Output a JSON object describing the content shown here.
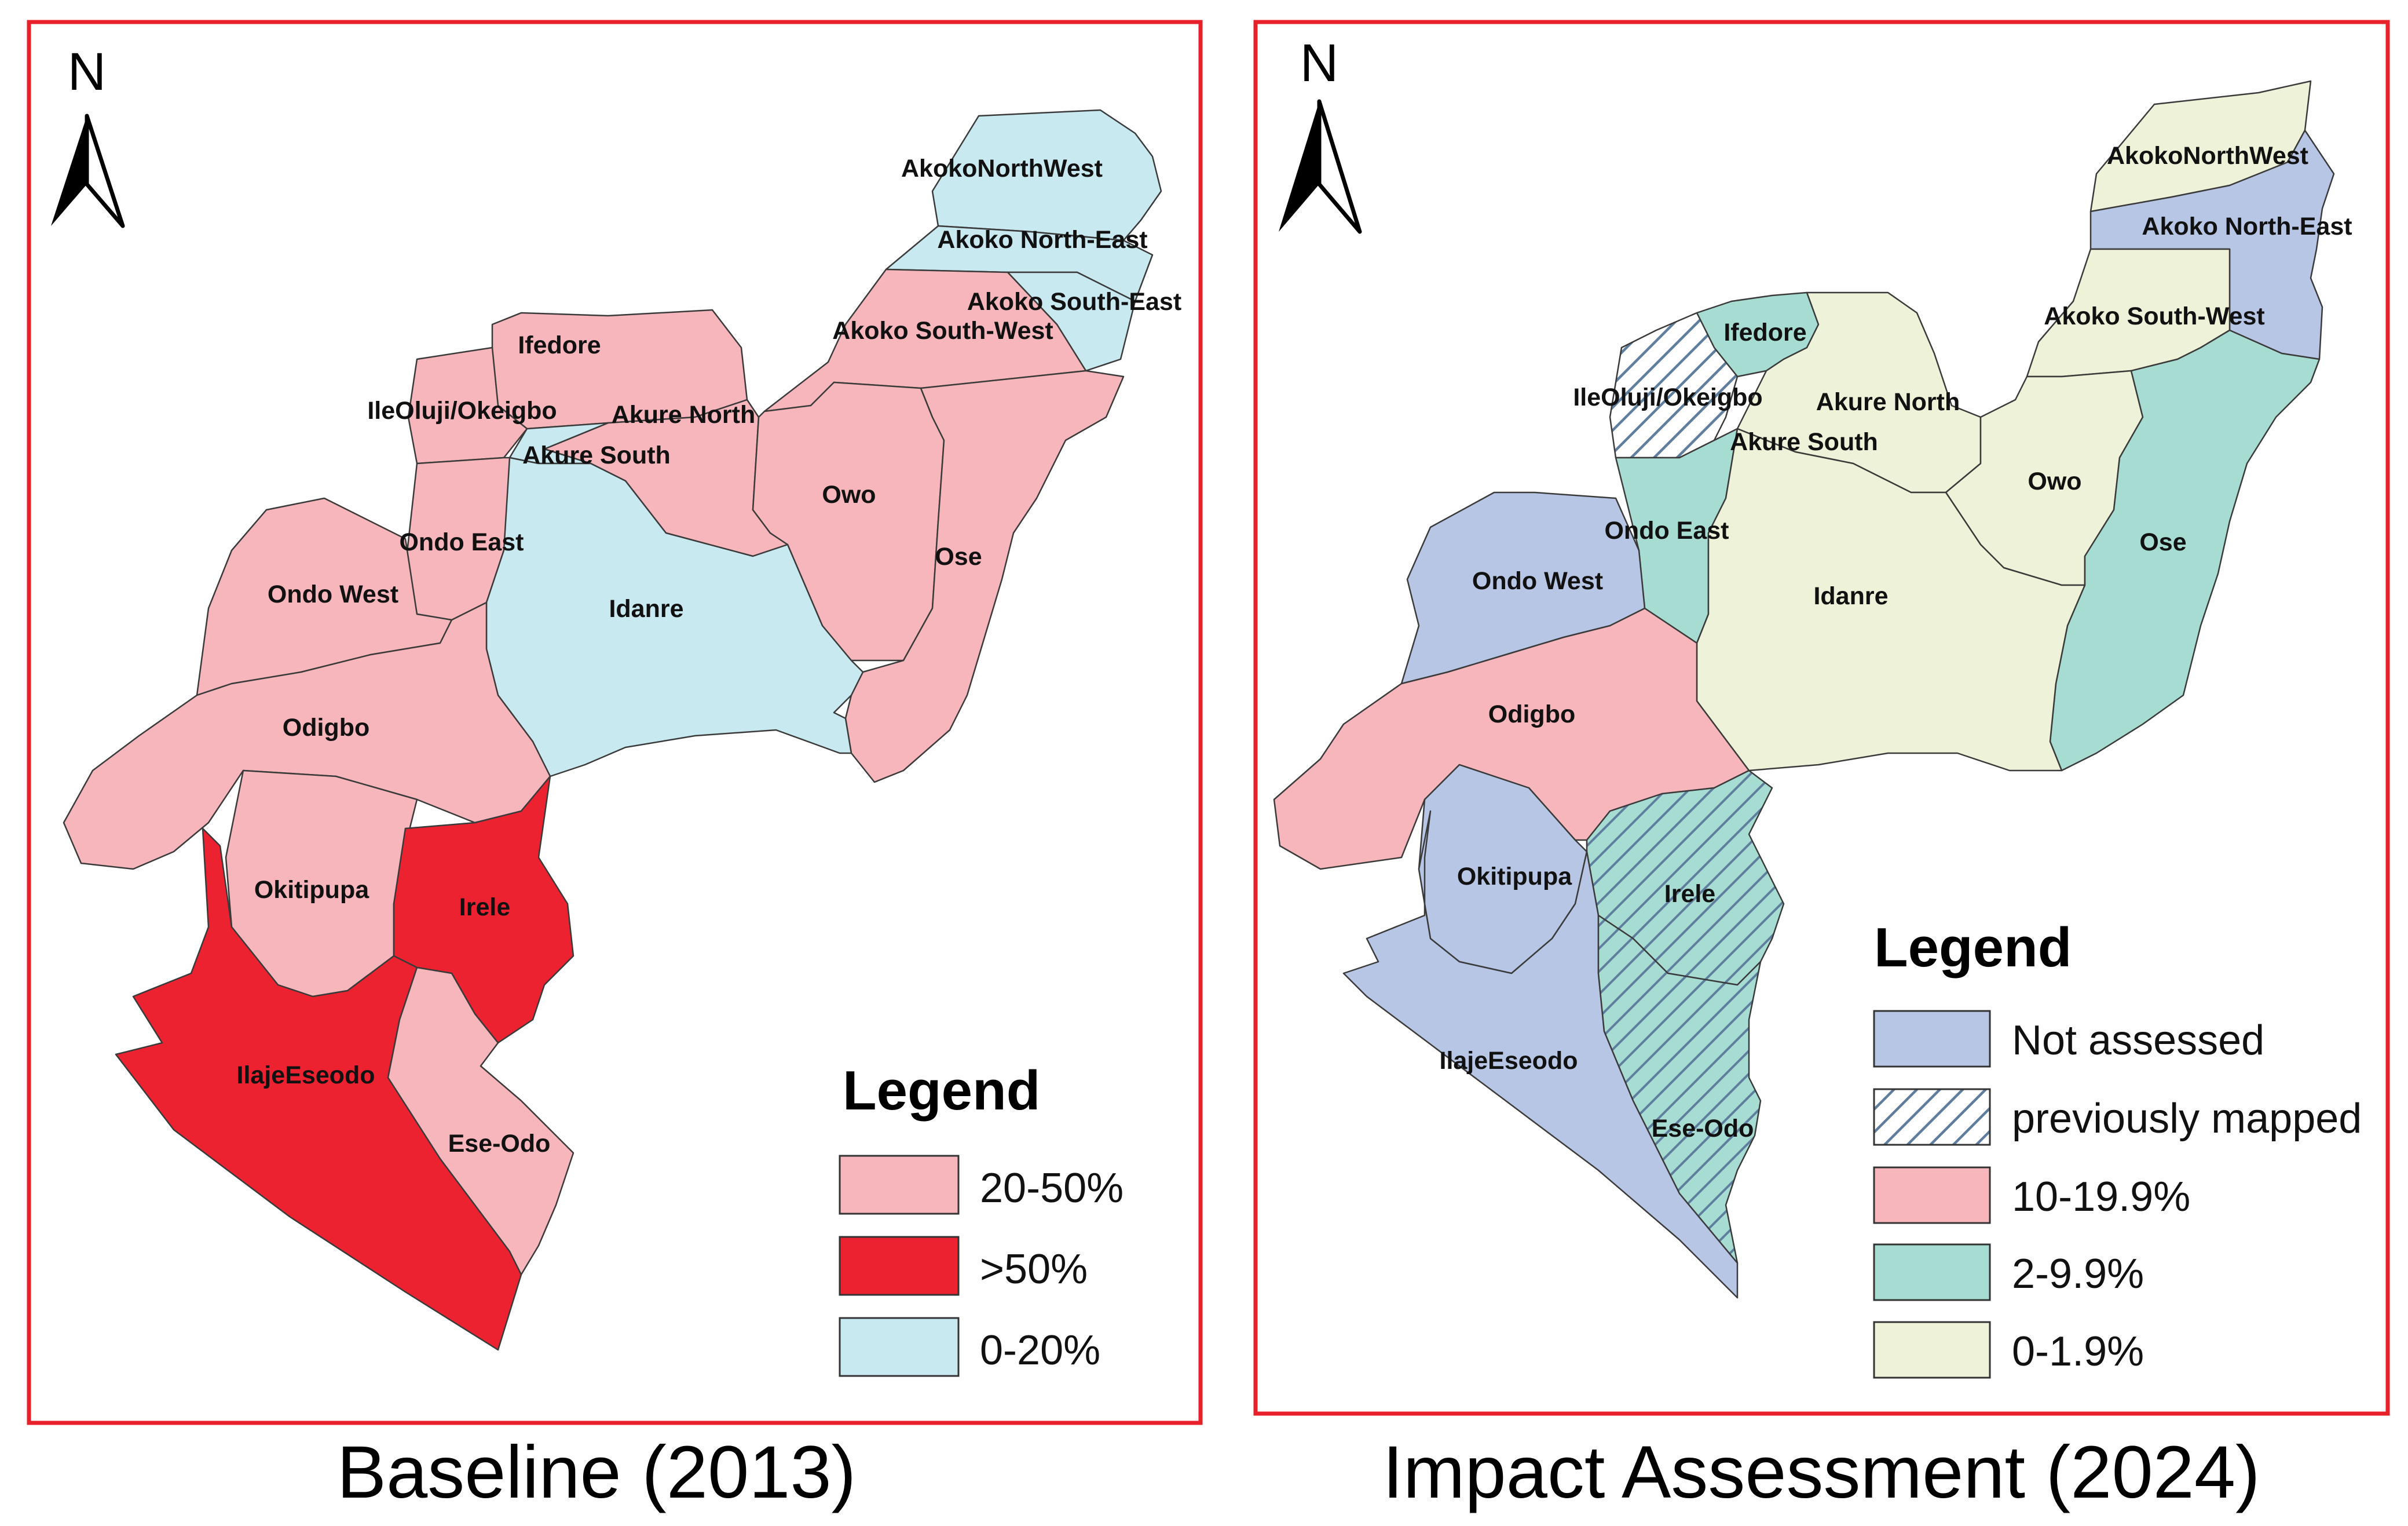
{
  "colors": {
    "frame": "#e8202a",
    "pink": "#f7b6bb",
    "red": "#ec2230",
    "light_blue": "#c9e9f0",
    "periwinkle": "#b8c6e6",
    "teal": "#a7dcd3",
    "cream": "#eef2d8",
    "hatch_line": "#5f7e9e"
  },
  "baseline": {
    "caption": "Baseline (2013)",
    "north_label": "N",
    "legend": {
      "title": "Legend",
      "items": [
        {
          "label": "20-50%",
          "color": "#f7b6bb"
        },
        {
          "label": ">50%",
          "color": "#ec2230"
        },
        {
          "label": "0-20%",
          "color": "#c9e9f0"
        }
      ]
    },
    "lga_labels": {
      "akoko_north_west": "AkokoNorthWest",
      "akoko_north_east": "Akoko North-East",
      "akoko_south_east": "Akoko South-East",
      "akoko_south_west": "Akoko South-West",
      "ifedore": "Ifedore",
      "ileoluji_okeigbo": "IleOluji/Okeigbo",
      "akure_north": "Akure North",
      "akure_south": "Akure South",
      "owo": "Owo",
      "ondo_east": "Ondo East",
      "ose": "Ose",
      "ondo_west": "Ondo West",
      "idanre": "Idanre",
      "odigbo": "Odigbo",
      "okitipupa": "Okitipupa",
      "irele": "Irele",
      "ilaje_eseodo": "IlajeEseodo",
      "ese_odo": "Ese-Odo"
    }
  },
  "impact": {
    "caption": "Impact Assessment (2024)",
    "north_label": "N",
    "legend": {
      "title": "Legend",
      "items": [
        {
          "label": "Not assessed",
          "color": "#b8c6e6"
        },
        {
          "label": "previously mapped",
          "color": "hatch"
        },
        {
          "label": "10-19.9%",
          "color": "#f7b6bb"
        },
        {
          "label": "2-9.9%",
          "color": "#a7dcd3"
        },
        {
          "label": "0-1.9%",
          "color": "#eef2d8"
        }
      ]
    },
    "lga_labels": {
      "akoko_north_west": "AkokoNorthWest",
      "akoko_north_east": "Akoko North-East",
      "akoko_south_west": "Akoko South-West",
      "ifedore": "Ifedore",
      "ileoluji_okeigbo": "IleOluji/Okeigbo",
      "akure_north": "Akure North",
      "akure_south": "Akure South",
      "owo": "Owo",
      "ondo_east": "Ondo East",
      "ose": "Ose",
      "ondo_west": "Ondo West",
      "idanre": "Idanre",
      "odigbo": "Odigbo",
      "okitipupa": "Okitipupa",
      "irele": "Irele",
      "ilaje_eseodo": "IlajeEseodo",
      "ese_odo": "Ese-Odo"
    }
  }
}
